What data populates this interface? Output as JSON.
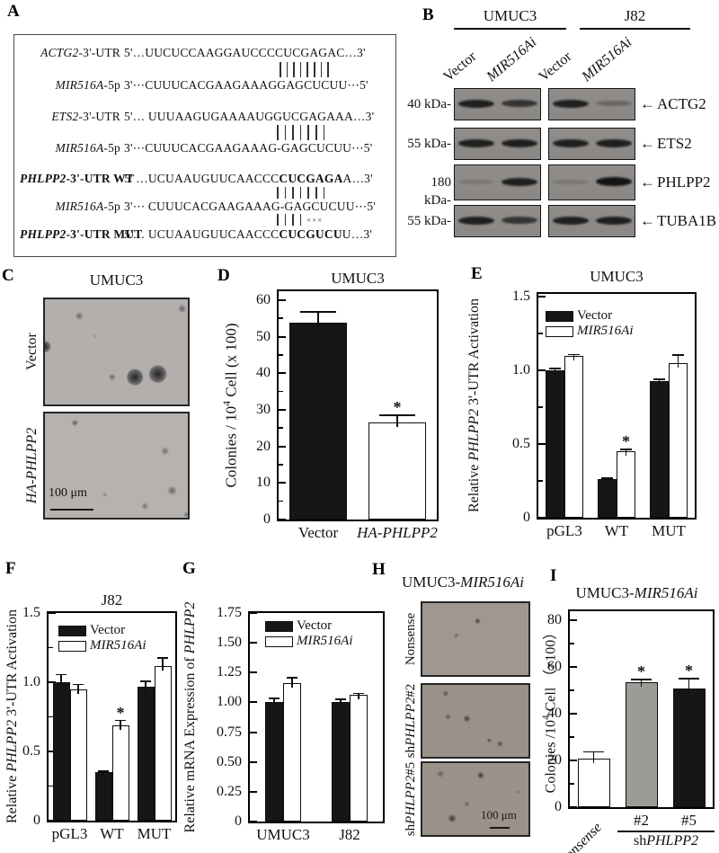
{
  "panels": {
    "a": "A",
    "b": "B",
    "c": "C",
    "d": "D",
    "e": "E",
    "f": "F",
    "g": "G",
    "h": "H",
    "i": "I"
  },
  "panelA": {
    "mismatch": "×××",
    "pair_groups": [
      {
        "bars": 8
      },
      {
        "bars": 7
      },
      {
        "bars": 7
      },
      {
        "bars": 4
      }
    ],
    "rows": [
      {
        "label_parts": [
          {
            "t": "ACTG2",
            "i": true
          },
          {
            "t": "-3'-UTR"
          }
        ],
        "seq_parts": [
          {
            "t": "5'…UUCUCCAAGGAUCCCCUCGAGAC…3'"
          }
        ]
      },
      {
        "label_parts": [
          {
            "t": "MIR516A",
            "i": true
          },
          {
            "t": "-5p"
          }
        ],
        "seq_parts": [
          {
            "t": "3'⋯CUUUCACGAAGAAAGGAGCUCUU⋯5'"
          }
        ]
      },
      {
        "label_parts": [
          {
            "t": "ETS2",
            "i": true
          },
          {
            "t": "-3'-UTR"
          }
        ],
        "seq_parts": [
          {
            "t": "5'… UUUAAGUGAAAAUGGUCGAGAAA…3'"
          }
        ]
      },
      {
        "label_parts": [
          {
            "t": "MIR516A",
            "i": true
          },
          {
            "t": "-5p"
          }
        ],
        "seq_parts": [
          {
            "t": "3'⋯CUUUCACGAAGAAAG-GAGCUCUU⋯5'"
          }
        ]
      },
      {
        "label_parts": [
          {
            "t": "PHLPP2",
            "i": true,
            "b": true
          },
          {
            "t": "-3'-UTR WT",
            "b": true
          }
        ],
        "seq_parts": [
          {
            "t": "5' …UCUAAUGUUCAACCC"
          },
          {
            "t": "CUCGAGA",
            "b": true
          },
          {
            "t": "A…3'"
          }
        ]
      },
      {
        "label_parts": [
          {
            "t": "MIR516A",
            "i": true
          },
          {
            "t": "-5p"
          }
        ],
        "seq_parts": [
          {
            "t": "3'⋯ CUUUCACGAAGAAAG-GAGCUCUU⋯5'"
          }
        ]
      },
      {
        "label_parts": [
          {
            "t": "PHLPP2",
            "i": true,
            "b": true
          },
          {
            "t": "-3'-UTR MUT",
            "b": true
          }
        ],
        "seq_parts": [
          {
            "t": "5'… UCUAAUGUUCAACCC"
          },
          {
            "t": "CUCGUCU",
            "b": true
          },
          {
            "t": "U…3'"
          }
        ]
      }
    ]
  },
  "panelB": {
    "cell_lines": [
      "UMUC3",
      "J82"
    ],
    "lane_labels": [
      [
        {
          "t": "Vector"
        }
      ],
      [
        {
          "t": "MIR516Ai",
          "i": true
        }
      ],
      [
        {
          "t": "Vector"
        }
      ],
      [
        {
          "t": "MIR516Ai",
          "i": true
        }
      ]
    ],
    "rows": [
      {
        "size": "40 kDa-",
        "arrow": "←",
        "protein": "ACTG2",
        "bands": [
          [
            "strong",
            "medium"
          ],
          [
            "strong",
            "faint"
          ]
        ]
      },
      {
        "size": "55 kDa-",
        "arrow": "←",
        "protein": "ETS2",
        "bands": [
          [
            "strong",
            "strong"
          ],
          [
            "strong",
            "strong"
          ]
        ]
      },
      {
        "size": "180 kDa-",
        "arrow": "←",
        "protein": "PHLPP2",
        "bands": [
          [
            "smear",
            "strong"
          ],
          [
            "smear",
            "vstrong"
          ]
        ]
      },
      {
        "size": "55 kDa-",
        "arrow": "←",
        "protein": "TUBA1B",
        "bands": [
          [
            "strong",
            "medium"
          ],
          [
            "strong",
            "strong"
          ]
        ]
      }
    ]
  },
  "panelC": {
    "title": "UMUC3",
    "row_labels": [
      [
        {
          "t": "Vector"
        }
      ],
      [
        {
          "t": "HA-PHLPP2",
          "i": true
        }
      ]
    ],
    "scale_bar": "100 μm"
  },
  "panelH": {
    "title_parts": [
      {
        "t": "UMUC3-"
      },
      {
        "t": "MIR516Ai",
        "i": true
      }
    ],
    "row_labels": [
      [
        {
          "t": "Nonsense"
        }
      ],
      [
        {
          "t": "sh"
        },
        {
          "t": "PHLPP2",
          "i": true
        },
        {
          "t": "#2"
        }
      ],
      [
        {
          "t": "sh"
        },
        {
          "t": "PHLPP2",
          "i": true
        },
        {
          "t": "#5"
        }
      ]
    ],
    "scale_bar": "100 μm"
  },
  "panelI_extra": {
    "bracket_label_parts": [
      {
        "t": "sh"
      },
      {
        "t": "PHLPP2",
        "i": true
      }
    ]
  },
  "chart_data": [
    {
      "id": "D",
      "type": "bar",
      "title": "UMUC3",
      "ylabel_parts": [
        {
          "t": "Colonies / 10"
        },
        {
          "t": "4",
          "sup": true
        },
        {
          "t": " Cell (x 100)"
        }
      ],
      "ylim": [
        0,
        62.5
      ],
      "yticks": [
        {
          "v": 0,
          "label": "0"
        },
        {
          "v": 10,
          "label": "10"
        },
        {
          "v": 20,
          "label": "20"
        },
        {
          "v": 30,
          "label": "30"
        },
        {
          "v": 40,
          "label": "40"
        },
        {
          "v": 50,
          "label": "50"
        },
        {
          "v": 60,
          "label": "60"
        }
      ],
      "yminor": [
        5,
        15,
        25,
        35,
        45,
        55
      ],
      "categories": [
        {
          "label": "Vector"
        },
        {
          "label": "HA-PHLPP2",
          "italic": true
        }
      ],
      "groups": [
        [
          {
            "value": 54,
            "error": 3,
            "color": "#161616"
          }
        ],
        [
          {
            "value": 26.5,
            "error": 2.2,
            "color": "#ffffff",
            "sig": "*"
          }
        ]
      ]
    },
    {
      "id": "E",
      "type": "bar",
      "title": "UMUC3",
      "ylabel_parts": [
        {
          "t": "Relative "
        },
        {
          "t": "PHLPP2",
          "i": true
        },
        {
          "t": " 3'-UTR Activation"
        }
      ],
      "ylim": [
        0,
        1.52
      ],
      "yticks": [
        {
          "v": 0,
          "label": "0"
        },
        {
          "v": 0.5,
          "label": "0.5"
        },
        {
          "v": 1.0,
          "label": "1.0"
        },
        {
          "v": 1.5,
          "label": "1.5"
        }
      ],
      "yminor": [
        0.25,
        0.75,
        1.25
      ],
      "legend": [
        {
          "label": "Vector",
          "color": "#161616"
        },
        {
          "label": "MIR516Ai",
          "color": "#ffffff",
          "italic": true
        }
      ],
      "categories": [
        {
          "label": "pGL3"
        },
        {
          "label": "WT"
        },
        {
          "label": "MUT"
        }
      ],
      "groups": [
        [
          {
            "value": 1.0,
            "error": 0.02,
            "color": "#161616"
          },
          {
            "value": 1.1,
            "error": 0.012,
            "color": "#ffffff"
          }
        ],
        [
          {
            "value": 0.26,
            "error": 0.012,
            "color": "#161616"
          },
          {
            "value": 0.45,
            "error": 0.02,
            "color": "#ffffff",
            "sig": "*"
          }
        ],
        [
          {
            "value": 0.93,
            "error": 0.015,
            "color": "#161616"
          },
          {
            "value": 1.05,
            "error": 0.06,
            "color": "#ffffff"
          }
        ]
      ]
    },
    {
      "id": "F",
      "type": "bar",
      "title": "J82",
      "ylabel_parts": [
        {
          "t": "Relative "
        },
        {
          "t": "PHLPP2",
          "i": true
        },
        {
          "t": " 3'-UTR Activation"
        }
      ],
      "ylim": [
        0,
        1.5
      ],
      "yticks": [
        {
          "v": 0,
          "label": "0"
        },
        {
          "v": 0.5,
          "label": "0.5"
        },
        {
          "v": 1.0,
          "label": "1.0"
        },
        {
          "v": 1.5,
          "label": "1.5"
        }
      ],
      "yminor": [
        0.25,
        0.75,
        1.25
      ],
      "legend": [
        {
          "label": "Vector",
          "color": "#161616"
        },
        {
          "label": "MIR516Ai",
          "color": "#ffffff",
          "italic": true
        }
      ],
      "categories": [
        {
          "label": "pGL3"
        },
        {
          "label": "WT"
        },
        {
          "label": "MUT"
        }
      ],
      "groups": [
        [
          {
            "value": 1.0,
            "error": 0.06,
            "color": "#161616"
          },
          {
            "value": 0.95,
            "error": 0.04,
            "color": "#ffffff"
          }
        ],
        [
          {
            "value": 0.35,
            "error": 0.012,
            "color": "#161616"
          },
          {
            "value": 0.69,
            "error": 0.04,
            "color": "#ffffff",
            "sig": "*"
          }
        ],
        [
          {
            "value": 0.97,
            "error": 0.04,
            "color": "#161616"
          },
          {
            "value": 1.12,
            "error": 0.06,
            "color": "#ffffff"
          }
        ]
      ]
    },
    {
      "id": "G",
      "type": "bar",
      "title": "",
      "ylabel_parts": [
        {
          "t": "Relative mRNA Expression of "
        },
        {
          "t": "PHLPP2",
          "i": true
        }
      ],
      "ylim": [
        0,
        1.75
      ],
      "yticks": [
        {
          "v": 0,
          "label": "0"
        },
        {
          "v": 0.25,
          "label": "0.25"
        },
        {
          "v": 0.5,
          "label": "0.50"
        },
        {
          "v": 0.75,
          "label": "0.75"
        },
        {
          "v": 1.0,
          "label": "1.00"
        },
        {
          "v": 1.25,
          "label": "1.25"
        },
        {
          "v": 1.5,
          "label": "1.50"
        },
        {
          "v": 1.75,
          "label": "1.75"
        }
      ],
      "yminor": [],
      "legend": [
        {
          "label": "Vector",
          "color": "#161616"
        },
        {
          "label": "MIR516Ai",
          "color": "#ffffff",
          "italic": true
        }
      ],
      "categories": [
        {
          "label": "UMUC3"
        },
        {
          "label": "J82"
        }
      ],
      "groups": [
        [
          {
            "value": 1.0,
            "error": 0.04,
            "color": "#161616"
          },
          {
            "value": 1.16,
            "error": 0.055,
            "color": "#ffffff"
          }
        ],
        [
          {
            "value": 1.0,
            "error": 0.03,
            "color": "#161616"
          },
          {
            "value": 1.06,
            "error": 0.02,
            "color": "#ffffff"
          }
        ]
      ]
    },
    {
      "id": "I",
      "type": "bar",
      "title_parts": [
        {
          "t": "UMUC3-"
        },
        {
          "t": "MIR516Ai",
          "i": true
        }
      ],
      "ylabel_parts": [
        {
          "t": "Colonies /10"
        },
        {
          "t": "4",
          "sup": true
        },
        {
          "t": " Cell （×100）"
        }
      ],
      "ylim": [
        0,
        84
      ],
      "yticks": [
        {
          "v": 0,
          "label": "0"
        },
        {
          "v": 20,
          "label": "20"
        },
        {
          "v": 40,
          "label": "40"
        },
        {
          "v": 60,
          "label": "60"
        },
        {
          "v": 80,
          "label": "80"
        }
      ],
      "yminor": [
        10,
        30,
        50,
        70
      ],
      "categories": [
        {
          "label": "Nonsense",
          "italic": true,
          "rotate": true
        },
        {
          "label": "#2"
        },
        {
          "label": "#5"
        }
      ],
      "groups": [
        [
          {
            "value": 21,
            "error": 3,
            "color": "#ffffff"
          }
        ],
        [
          {
            "value": 53.5,
            "error": 1.5,
            "color": "#9b9b97",
            "sig": "*"
          }
        ],
        [
          {
            "value": 51,
            "error": 4.5,
            "color": "#161616",
            "sig": "*"
          }
        ]
      ]
    }
  ]
}
